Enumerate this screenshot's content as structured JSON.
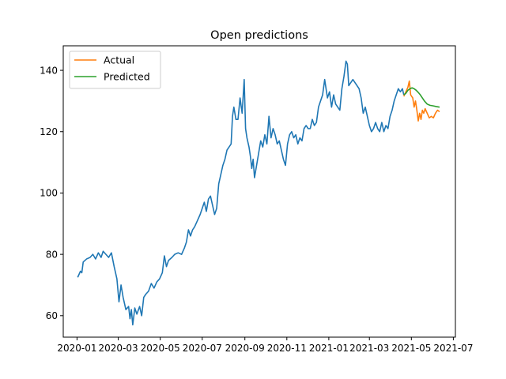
{
  "chart_data": {
    "type": "line",
    "title": "Open predictions",
    "xlabel": "",
    "ylabel": "",
    "xlim": [
      "2019-12-12",
      "2021-07-04"
    ],
    "ylim": [
      53,
      148
    ],
    "grid": false,
    "legend_position": "top-left",
    "x_ticks": [
      "2020-01",
      "2020-03",
      "2020-05",
      "2020-07",
      "2020-09",
      "2020-11",
      "2021-01",
      "2021-03",
      "2021-05",
      "2021-07"
    ],
    "y_ticks": [
      60,
      80,
      100,
      120,
      140
    ],
    "series": [
      {
        "name": "",
        "color": "#1f77b4",
        "points": [
          [
            "2020-01-02",
            72.5
          ],
          [
            "2020-01-06",
            74.5
          ],
          [
            "2020-01-08",
            74
          ],
          [
            "2020-01-10",
            77.5
          ],
          [
            "2020-01-15",
            78.5
          ],
          [
            "2020-01-20",
            79
          ],
          [
            "2020-01-24",
            80
          ],
          [
            "2020-01-28",
            78.5
          ],
          [
            "2020-02-01",
            80.5
          ],
          [
            "2020-02-05",
            79
          ],
          [
            "2020-02-08",
            81
          ],
          [
            "2020-02-12",
            80
          ],
          [
            "2020-02-16",
            79
          ],
          [
            "2020-02-20",
            80.5
          ],
          [
            "2020-02-24",
            76
          ],
          [
            "2020-02-28",
            72
          ],
          [
            "2020-03-02",
            64.5
          ],
          [
            "2020-03-05",
            70
          ],
          [
            "2020-03-08",
            66
          ],
          [
            "2020-03-12",
            62
          ],
          [
            "2020-03-16",
            63
          ],
          [
            "2020-03-18",
            59
          ],
          [
            "2020-03-20",
            62
          ],
          [
            "2020-03-22",
            57
          ],
          [
            "2020-03-25",
            62.5
          ],
          [
            "2020-03-28",
            60.5
          ],
          [
            "2020-04-01",
            63
          ],
          [
            "2020-04-04",
            60
          ],
          [
            "2020-04-07",
            66
          ],
          [
            "2020-04-10",
            67
          ],
          [
            "2020-04-14",
            68
          ],
          [
            "2020-04-18",
            70.5
          ],
          [
            "2020-04-22",
            69
          ],
          [
            "2020-04-26",
            71
          ],
          [
            "2020-04-30",
            72
          ],
          [
            "2020-05-04",
            74
          ],
          [
            "2020-05-07",
            79.5
          ],
          [
            "2020-05-10",
            76
          ],
          [
            "2020-05-13",
            78
          ],
          [
            "2020-05-18",
            79
          ],
          [
            "2020-05-22",
            80
          ],
          [
            "2020-05-27",
            80.5
          ],
          [
            "2020-06-01",
            80
          ],
          [
            "2020-06-05",
            82
          ],
          [
            "2020-06-08",
            84
          ],
          [
            "2020-06-11",
            88
          ],
          [
            "2020-06-14",
            86
          ],
          [
            "2020-06-17",
            88
          ],
          [
            "2020-06-20",
            89
          ],
          [
            "2020-06-24",
            91
          ],
          [
            "2020-06-28",
            93
          ],
          [
            "2020-07-01",
            95
          ],
          [
            "2020-07-04",
            97
          ],
          [
            "2020-07-07",
            94
          ],
          [
            "2020-07-10",
            98
          ],
          [
            "2020-07-13",
            99
          ],
          [
            "2020-07-16",
            96
          ],
          [
            "2020-07-19",
            93
          ],
          [
            "2020-07-22",
            95
          ],
          [
            "2020-07-25",
            103
          ],
          [
            "2020-07-28",
            106
          ],
          [
            "2020-07-31",
            109
          ],
          [
            "2020-08-03",
            111
          ],
          [
            "2020-08-06",
            114
          ],
          [
            "2020-08-09",
            115
          ],
          [
            "2020-08-12",
            116
          ],
          [
            "2020-08-14",
            125
          ],
          [
            "2020-08-16",
            128
          ],
          [
            "2020-08-19",
            124
          ],
          [
            "2020-08-22",
            124
          ],
          [
            "2020-08-25",
            131
          ],
          [
            "2020-08-28",
            126
          ],
          [
            "2020-08-31",
            137
          ],
          [
            "2020-09-02",
            121
          ],
          [
            "2020-09-04",
            118
          ],
          [
            "2020-09-07",
            115
          ],
          [
            "2020-09-09",
            112
          ],
          [
            "2020-09-11",
            108
          ],
          [
            "2020-09-13",
            111
          ],
          [
            "2020-09-15",
            105
          ],
          [
            "2020-09-18",
            109
          ],
          [
            "2020-09-21",
            113
          ],
          [
            "2020-09-24",
            117
          ],
          [
            "2020-09-27",
            115
          ],
          [
            "2020-09-30",
            119
          ],
          [
            "2020-10-03",
            116
          ],
          [
            "2020-10-06",
            125
          ],
          [
            "2020-10-09",
            118
          ],
          [
            "2020-10-12",
            121
          ],
          [
            "2020-10-15",
            119
          ],
          [
            "2020-10-18",
            116
          ],
          [
            "2020-10-21",
            117
          ],
          [
            "2020-10-24",
            114
          ],
          [
            "2020-10-27",
            111
          ],
          [
            "2020-10-30",
            109
          ],
          [
            "2020-11-02",
            116
          ],
          [
            "2020-11-05",
            119
          ],
          [
            "2020-11-08",
            120
          ],
          [
            "2020-11-11",
            118
          ],
          [
            "2020-11-14",
            119
          ],
          [
            "2020-11-17",
            116
          ],
          [
            "2020-11-20",
            118
          ],
          [
            "2020-11-23",
            117
          ],
          [
            "2020-11-26",
            121
          ],
          [
            "2020-11-29",
            122
          ],
          [
            "2020-12-02",
            121
          ],
          [
            "2020-12-05",
            121
          ],
          [
            "2020-12-08",
            124
          ],
          [
            "2020-12-11",
            122
          ],
          [
            "2020-12-14",
            123
          ],
          [
            "2020-12-17",
            128
          ],
          [
            "2020-12-20",
            130
          ],
          [
            "2020-12-23",
            132
          ],
          [
            "2020-12-26",
            137
          ],
          [
            "2020-12-28",
            134
          ],
          [
            "2020-12-30",
            131
          ],
          [
            "2021-01-02",
            133
          ],
          [
            "2021-01-05",
            128
          ],
          [
            "2021-01-08",
            132
          ],
          [
            "2021-01-11",
            129
          ],
          [
            "2021-01-14",
            128
          ],
          [
            "2021-01-17",
            127
          ],
          [
            "2021-01-20",
            134
          ],
          [
            "2021-01-23",
            138
          ],
          [
            "2021-01-26",
            143
          ],
          [
            "2021-01-28",
            142
          ],
          [
            "2021-01-30",
            135
          ],
          [
            "2021-02-02",
            136
          ],
          [
            "2021-02-05",
            137
          ],
          [
            "2021-02-08",
            136
          ],
          [
            "2021-02-11",
            135
          ],
          [
            "2021-02-14",
            134
          ],
          [
            "2021-02-17",
            131
          ],
          [
            "2021-02-20",
            126
          ],
          [
            "2021-02-23",
            128
          ],
          [
            "2021-02-26",
            125
          ],
          [
            "2021-03-01",
            122
          ],
          [
            "2021-03-04",
            120
          ],
          [
            "2021-03-07",
            121
          ],
          [
            "2021-03-10",
            123
          ],
          [
            "2021-03-13",
            121
          ],
          [
            "2021-03-16",
            120
          ],
          [
            "2021-03-19",
            123
          ],
          [
            "2021-03-22",
            120
          ],
          [
            "2021-03-25",
            122
          ],
          [
            "2021-03-28",
            121
          ],
          [
            "2021-03-31",
            125
          ],
          [
            "2021-04-03",
            127
          ],
          [
            "2021-04-06",
            130
          ],
          [
            "2021-04-09",
            132
          ],
          [
            "2021-04-12",
            134
          ],
          [
            "2021-04-15",
            133
          ],
          [
            "2021-04-18",
            134
          ],
          [
            "2021-04-20",
            132
          ]
        ]
      },
      {
        "name": "Actual",
        "color": "#ff7f0e",
        "points": [
          [
            "2021-04-20",
            131.5
          ],
          [
            "2021-04-23",
            133
          ],
          [
            "2021-04-26",
            134.5
          ],
          [
            "2021-04-28",
            136.5
          ],
          [
            "2021-04-30",
            132
          ],
          [
            "2021-05-03",
            131
          ],
          [
            "2021-05-05",
            128
          ],
          [
            "2021-05-07",
            130
          ],
          [
            "2021-05-09",
            127
          ],
          [
            "2021-05-11",
            123.5
          ],
          [
            "2021-05-13",
            126
          ],
          [
            "2021-05-15",
            124
          ],
          [
            "2021-05-17",
            127
          ],
          [
            "2021-05-19",
            126
          ],
          [
            "2021-05-21",
            127.5
          ],
          [
            "2021-05-24",
            126
          ],
          [
            "2021-05-27",
            124.5
          ],
          [
            "2021-05-30",
            125
          ],
          [
            "2021-06-02",
            124.5
          ],
          [
            "2021-06-05",
            126
          ],
          [
            "2021-06-08",
            127
          ],
          [
            "2021-06-11",
            126.5
          ]
        ]
      },
      {
        "name": "Predicted",
        "color": "#2ca02c",
        "points": [
          [
            "2021-04-20",
            132
          ],
          [
            "2021-04-23",
            132.5
          ],
          [
            "2021-04-26",
            133.5
          ],
          [
            "2021-04-29",
            134
          ],
          [
            "2021-05-02",
            134.3
          ],
          [
            "2021-05-05",
            134
          ],
          [
            "2021-05-08",
            133.5
          ],
          [
            "2021-05-11",
            132.8
          ],
          [
            "2021-05-14",
            132
          ],
          [
            "2021-05-17",
            131
          ],
          [
            "2021-05-20",
            130
          ],
          [
            "2021-05-24",
            129
          ],
          [
            "2021-05-28",
            128.6
          ],
          [
            "2021-06-02",
            128.4
          ],
          [
            "2021-06-06",
            128.2
          ],
          [
            "2021-06-11",
            128
          ]
        ]
      }
    ]
  }
}
